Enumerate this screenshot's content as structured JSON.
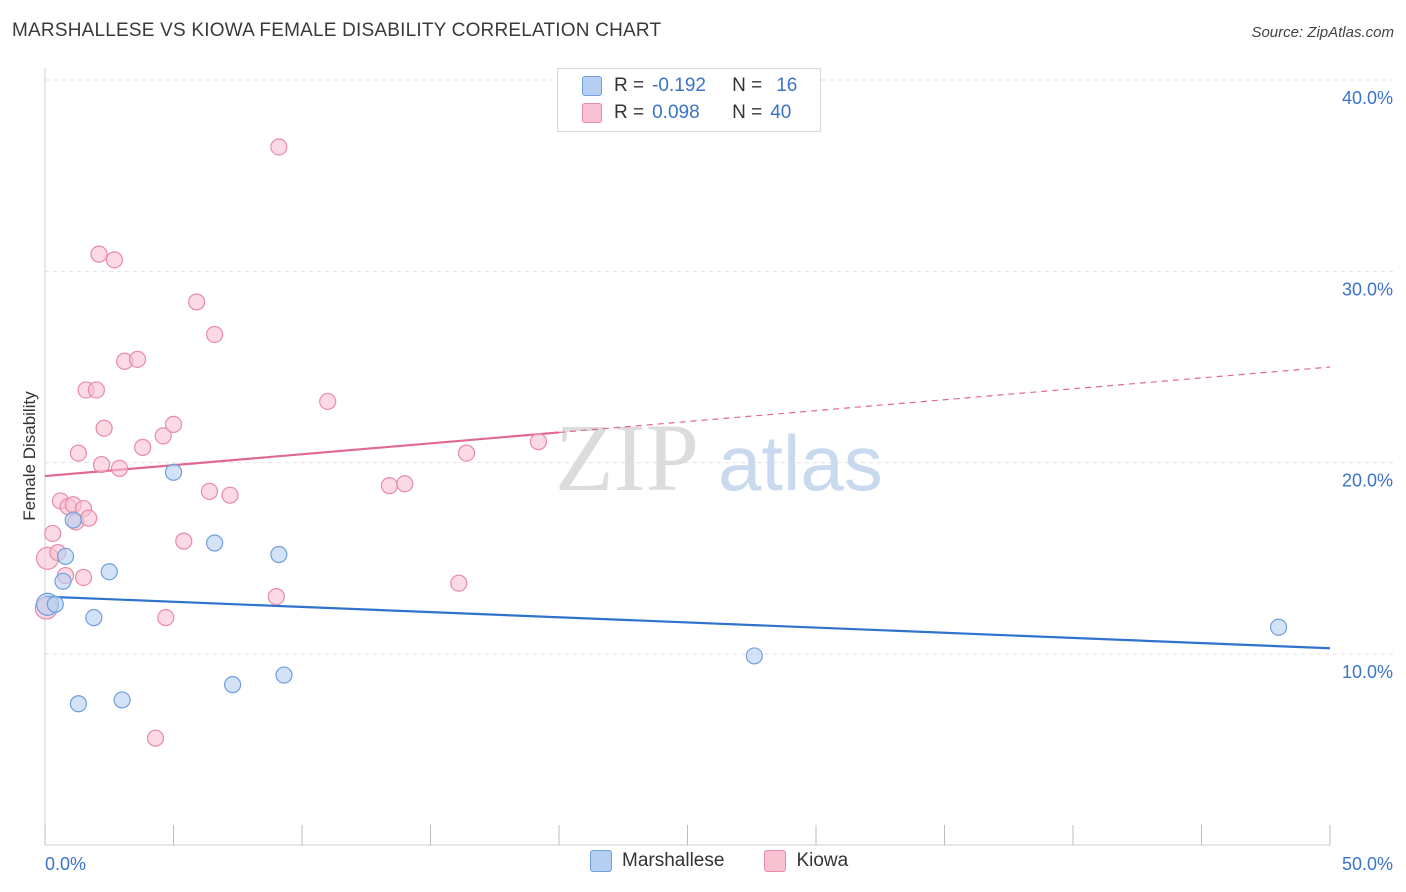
{
  "header": {
    "title": "MARSHALLESE VS KIOWA FEMALE DISABILITY CORRELATION CHART",
    "source": "Source: ZipAtlas.com"
  },
  "legend": {
    "r_label": "R =",
    "n_label": "N =",
    "rows": [
      {
        "name": "Marshallese",
        "r": "-0.192",
        "n": "16"
      },
      {
        "name": "Kiowa",
        "r": "0.098",
        "n": "40"
      }
    ]
  },
  "watermark": {
    "part1": "ZIP",
    "part2": "atlas"
  },
  "colors": {
    "marshallese_fill": "#b5cff2",
    "marshallese_stroke": "#6f9fdc",
    "marshallese_line": "#2f73cc",
    "kiowa_fill": "#f9c2d2",
    "kiowa_stroke": "#e98aa8",
    "kiowa_line": "#e06892",
    "grid": "#e2e2e2",
    "tick_text": "#3a73c8"
  },
  "chart_data": {
    "type": "scatter",
    "title": "MARSHALLESE VS KIOWA FEMALE DISABILITY CORRELATION CHART",
    "xlabel": "",
    "ylabel": "Female Disability",
    "xlim": [
      0,
      50
    ],
    "ylim": [
      0,
      42
    ],
    "x_tick_labels": [
      "0.0%",
      "50.0%"
    ],
    "y_ticks": [
      10,
      20,
      30,
      40
    ],
    "y_tick_labels": [
      "10.0%",
      "20.0%",
      "30.0%",
      "40.0%"
    ],
    "grid": true,
    "legend_position": "top-center",
    "series": [
      {
        "name": "Marshallese",
        "r": -0.192,
        "n": 16,
        "points": [
          {
            "x": 0.1,
            "y": 12.6
          },
          {
            "x": 0.4,
            "y": 12.6
          },
          {
            "x": 0.7,
            "y": 13.8
          },
          {
            "x": 0.8,
            "y": 15.1
          },
          {
            "x": 1.1,
            "y": 17.0
          },
          {
            "x": 1.3,
            "y": 7.4
          },
          {
            "x": 1.9,
            "y": 11.9
          },
          {
            "x": 2.5,
            "y": 14.3
          },
          {
            "x": 3.0,
            "y": 7.6
          },
          {
            "x": 5.0,
            "y": 19.5
          },
          {
            "x": 6.6,
            "y": 15.8
          },
          {
            "x": 7.3,
            "y": 8.4
          },
          {
            "x": 9.1,
            "y": 15.2
          },
          {
            "x": 9.3,
            "y": 8.9
          },
          {
            "x": 27.6,
            "y": 9.9
          },
          {
            "x": 48.0,
            "y": 11.4
          }
        ],
        "trend": {
          "x0": 0,
          "y0": 13.0,
          "x1": 50,
          "y1": 10.3
        }
      },
      {
        "name": "Kiowa",
        "r": 0.098,
        "n": 40,
        "points": [
          {
            "x": 0.05,
            "y": 12.4
          },
          {
            "x": 0.1,
            "y": 15.0
          },
          {
            "x": 0.3,
            "y": 16.3
          },
          {
            "x": 0.5,
            "y": 15.3
          },
          {
            "x": 0.6,
            "y": 18.0
          },
          {
            "x": 0.8,
            "y": 14.1
          },
          {
            "x": 0.9,
            "y": 17.7
          },
          {
            "x": 1.1,
            "y": 17.8
          },
          {
            "x": 1.2,
            "y": 16.9
          },
          {
            "x": 1.3,
            "y": 20.5
          },
          {
            "x": 1.5,
            "y": 14.0
          },
          {
            "x": 1.5,
            "y": 17.6
          },
          {
            "x": 1.6,
            "y": 23.8
          },
          {
            "x": 1.7,
            "y": 17.1
          },
          {
            "x": 2.0,
            "y": 23.8
          },
          {
            "x": 2.1,
            "y": 30.9
          },
          {
            "x": 2.2,
            "y": 19.9
          },
          {
            "x": 2.3,
            "y": 21.8
          },
          {
            "x": 2.7,
            "y": 30.6
          },
          {
            "x": 2.9,
            "y": 19.7
          },
          {
            "x": 3.1,
            "y": 25.3
          },
          {
            "x": 3.6,
            "y": 25.4
          },
          {
            "x": 3.8,
            "y": 20.8
          },
          {
            "x": 4.3,
            "y": 5.6
          },
          {
            "x": 4.6,
            "y": 21.4
          },
          {
            "x": 4.7,
            "y": 11.9
          },
          {
            "x": 5.0,
            "y": 22.0
          },
          {
            "x": 5.4,
            "y": 15.9
          },
          {
            "x": 5.9,
            "y": 28.4
          },
          {
            "x": 6.4,
            "y": 18.5
          },
          {
            "x": 6.6,
            "y": 26.7
          },
          {
            "x": 7.2,
            "y": 18.3
          },
          {
            "x": 9.0,
            "y": 13.0
          },
          {
            "x": 9.1,
            "y": 36.5
          },
          {
            "x": 11.0,
            "y": 23.2
          },
          {
            "x": 13.4,
            "y": 18.8
          },
          {
            "x": 14.0,
            "y": 18.9
          },
          {
            "x": 16.1,
            "y": 13.7
          },
          {
            "x": 16.4,
            "y": 20.5
          },
          {
            "x": 19.2,
            "y": 21.1
          }
        ],
        "trend": {
          "x0": 0,
          "y0": 19.3,
          "x1": 50,
          "y1": 25.0,
          "solid_until_x": 20
        }
      }
    ]
  }
}
